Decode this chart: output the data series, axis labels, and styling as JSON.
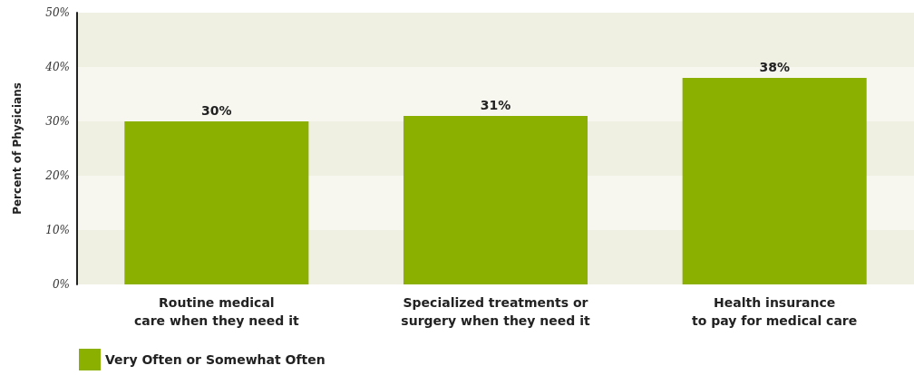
{
  "chart_data": {
    "type": "bar",
    "ylabel": "Percent of Physicians",
    "categories": [
      "Routine medical\ncare when they need it",
      "Specialized treatments or\nsurgery when they need it",
      "Health insurance\nto pay for medical care"
    ],
    "series": [
      {
        "name": "Very Often or Somewhat Often",
        "color": "#8cb000",
        "values": [
          30,
          31,
          38
        ],
        "value_labels": [
          "30%",
          "31%",
          "38%"
        ]
      }
    ],
    "ylim": [
      0,
      50
    ],
    "yticks": [
      {
        "value": 0,
        "label": "0%"
      },
      {
        "value": 10,
        "label": "10%"
      },
      {
        "value": 20,
        "label": "20%"
      },
      {
        "value": 30,
        "label": "30%"
      },
      {
        "value": 40,
        "label": "40%"
      },
      {
        "value": 50,
        "label": "50%"
      }
    ],
    "legend": "bottom left"
  }
}
